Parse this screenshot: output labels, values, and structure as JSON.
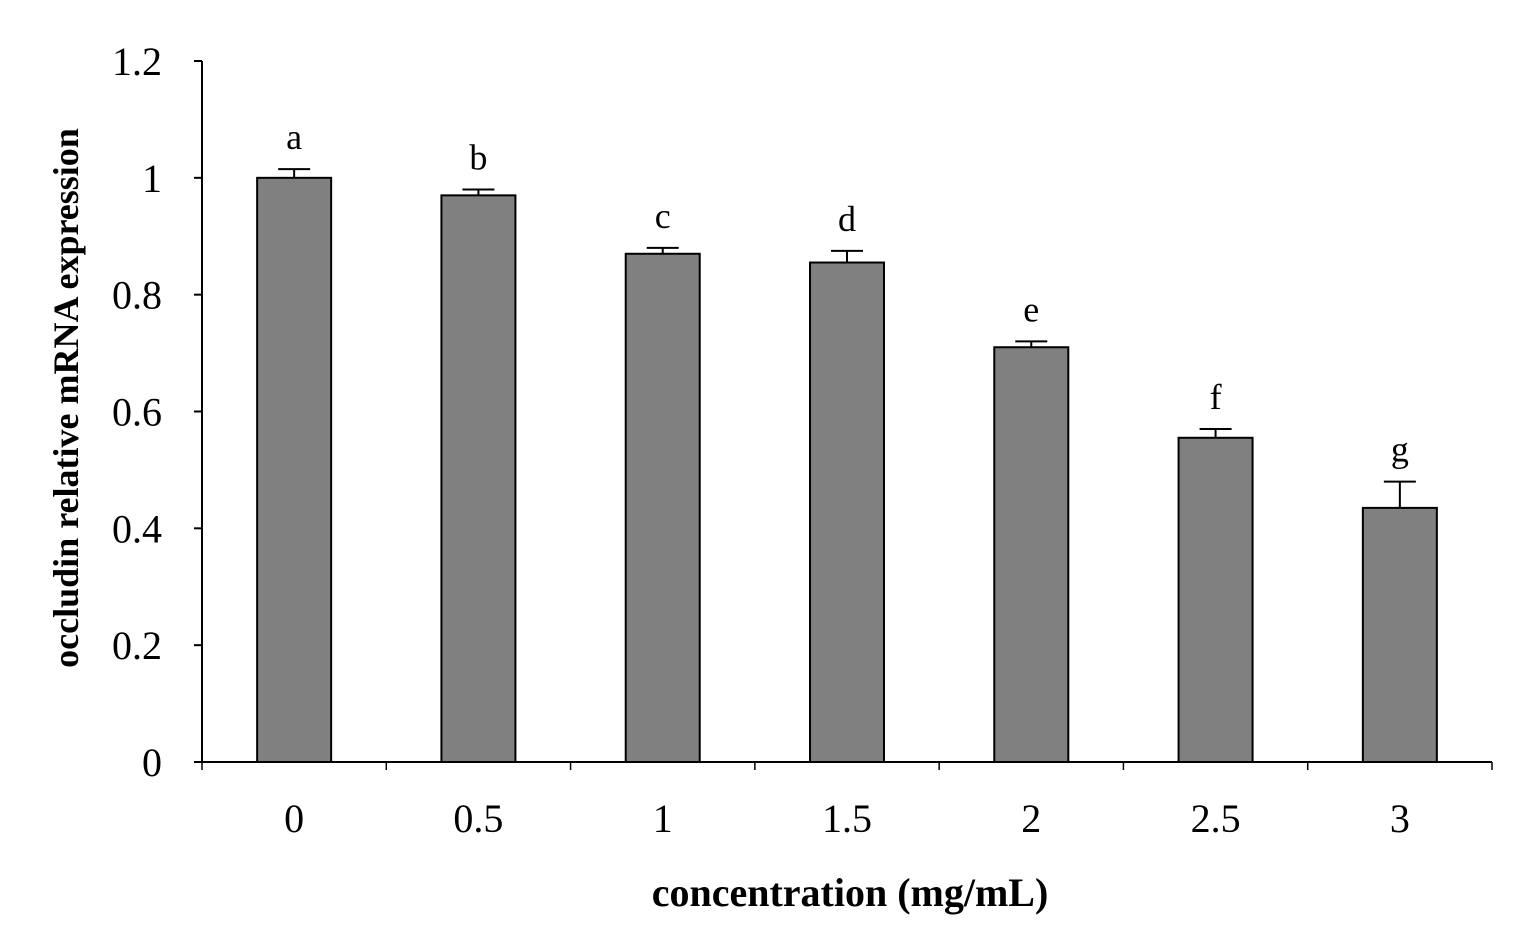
{
  "chart_data": {
    "type": "bar",
    "title": "",
    "xlabel": "concentration (mg/mL)",
    "ylabel": "occludin relative mRNA expression",
    "categories": [
      "0",
      "0.5",
      "1",
      "1.5",
      "2",
      "2.5",
      "3"
    ],
    "values": [
      1.0,
      0.97,
      0.87,
      0.855,
      0.71,
      0.555,
      0.435
    ],
    "error_bars": [
      0.015,
      0.01,
      0.01,
      0.02,
      0.01,
      0.015,
      0.045
    ],
    "significance_letters": [
      "a",
      "b",
      "c",
      "d",
      "e",
      "f",
      "g"
    ],
    "yticks": [
      "0",
      "0.2",
      "0.4",
      "0.6",
      "0.8",
      "1",
      "1.2"
    ],
    "ylim": [
      0,
      1.2
    ],
    "bar_color": "#808080",
    "grid": false,
    "legend": "none"
  }
}
